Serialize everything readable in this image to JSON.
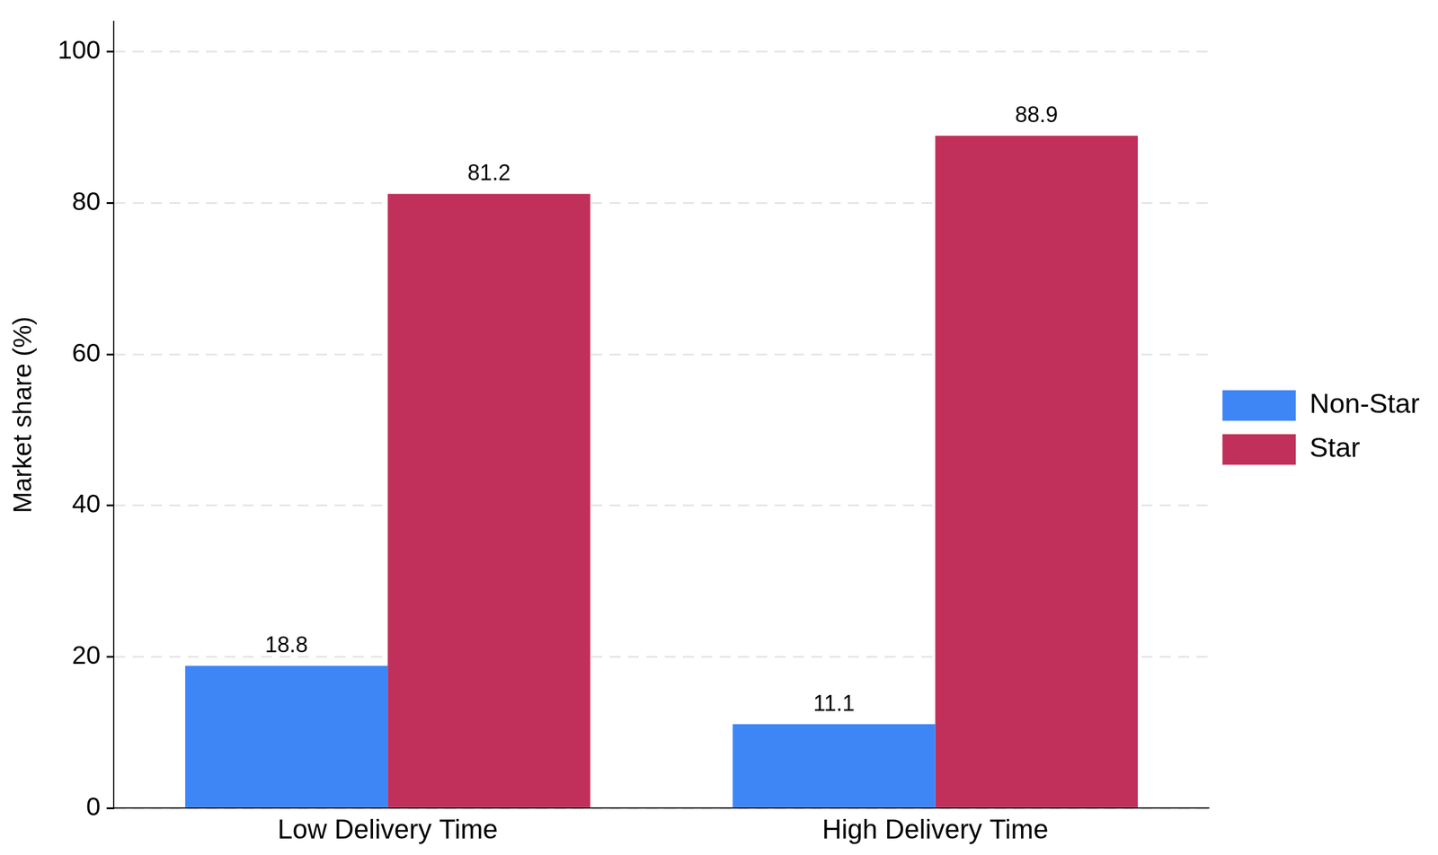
{
  "chart_data": {
    "type": "bar",
    "categories": [
      "Low Delivery Time",
      "High Delivery Time"
    ],
    "series": [
      {
        "name": "Non-Star",
        "color": "#3e86f5",
        "values": [
          18.8,
          11.1
        ]
      },
      {
        "name": "Star",
        "color": "#c0305a",
        "values": [
          81.2,
          88.9
        ]
      }
    ],
    "y_label": "Market share (%)",
    "ylim": [
      0,
      104
    ],
    "yticks": [
      0,
      20,
      40,
      60,
      80,
      100
    ],
    "grid": true,
    "legend": "right",
    "data_labels": true
  }
}
